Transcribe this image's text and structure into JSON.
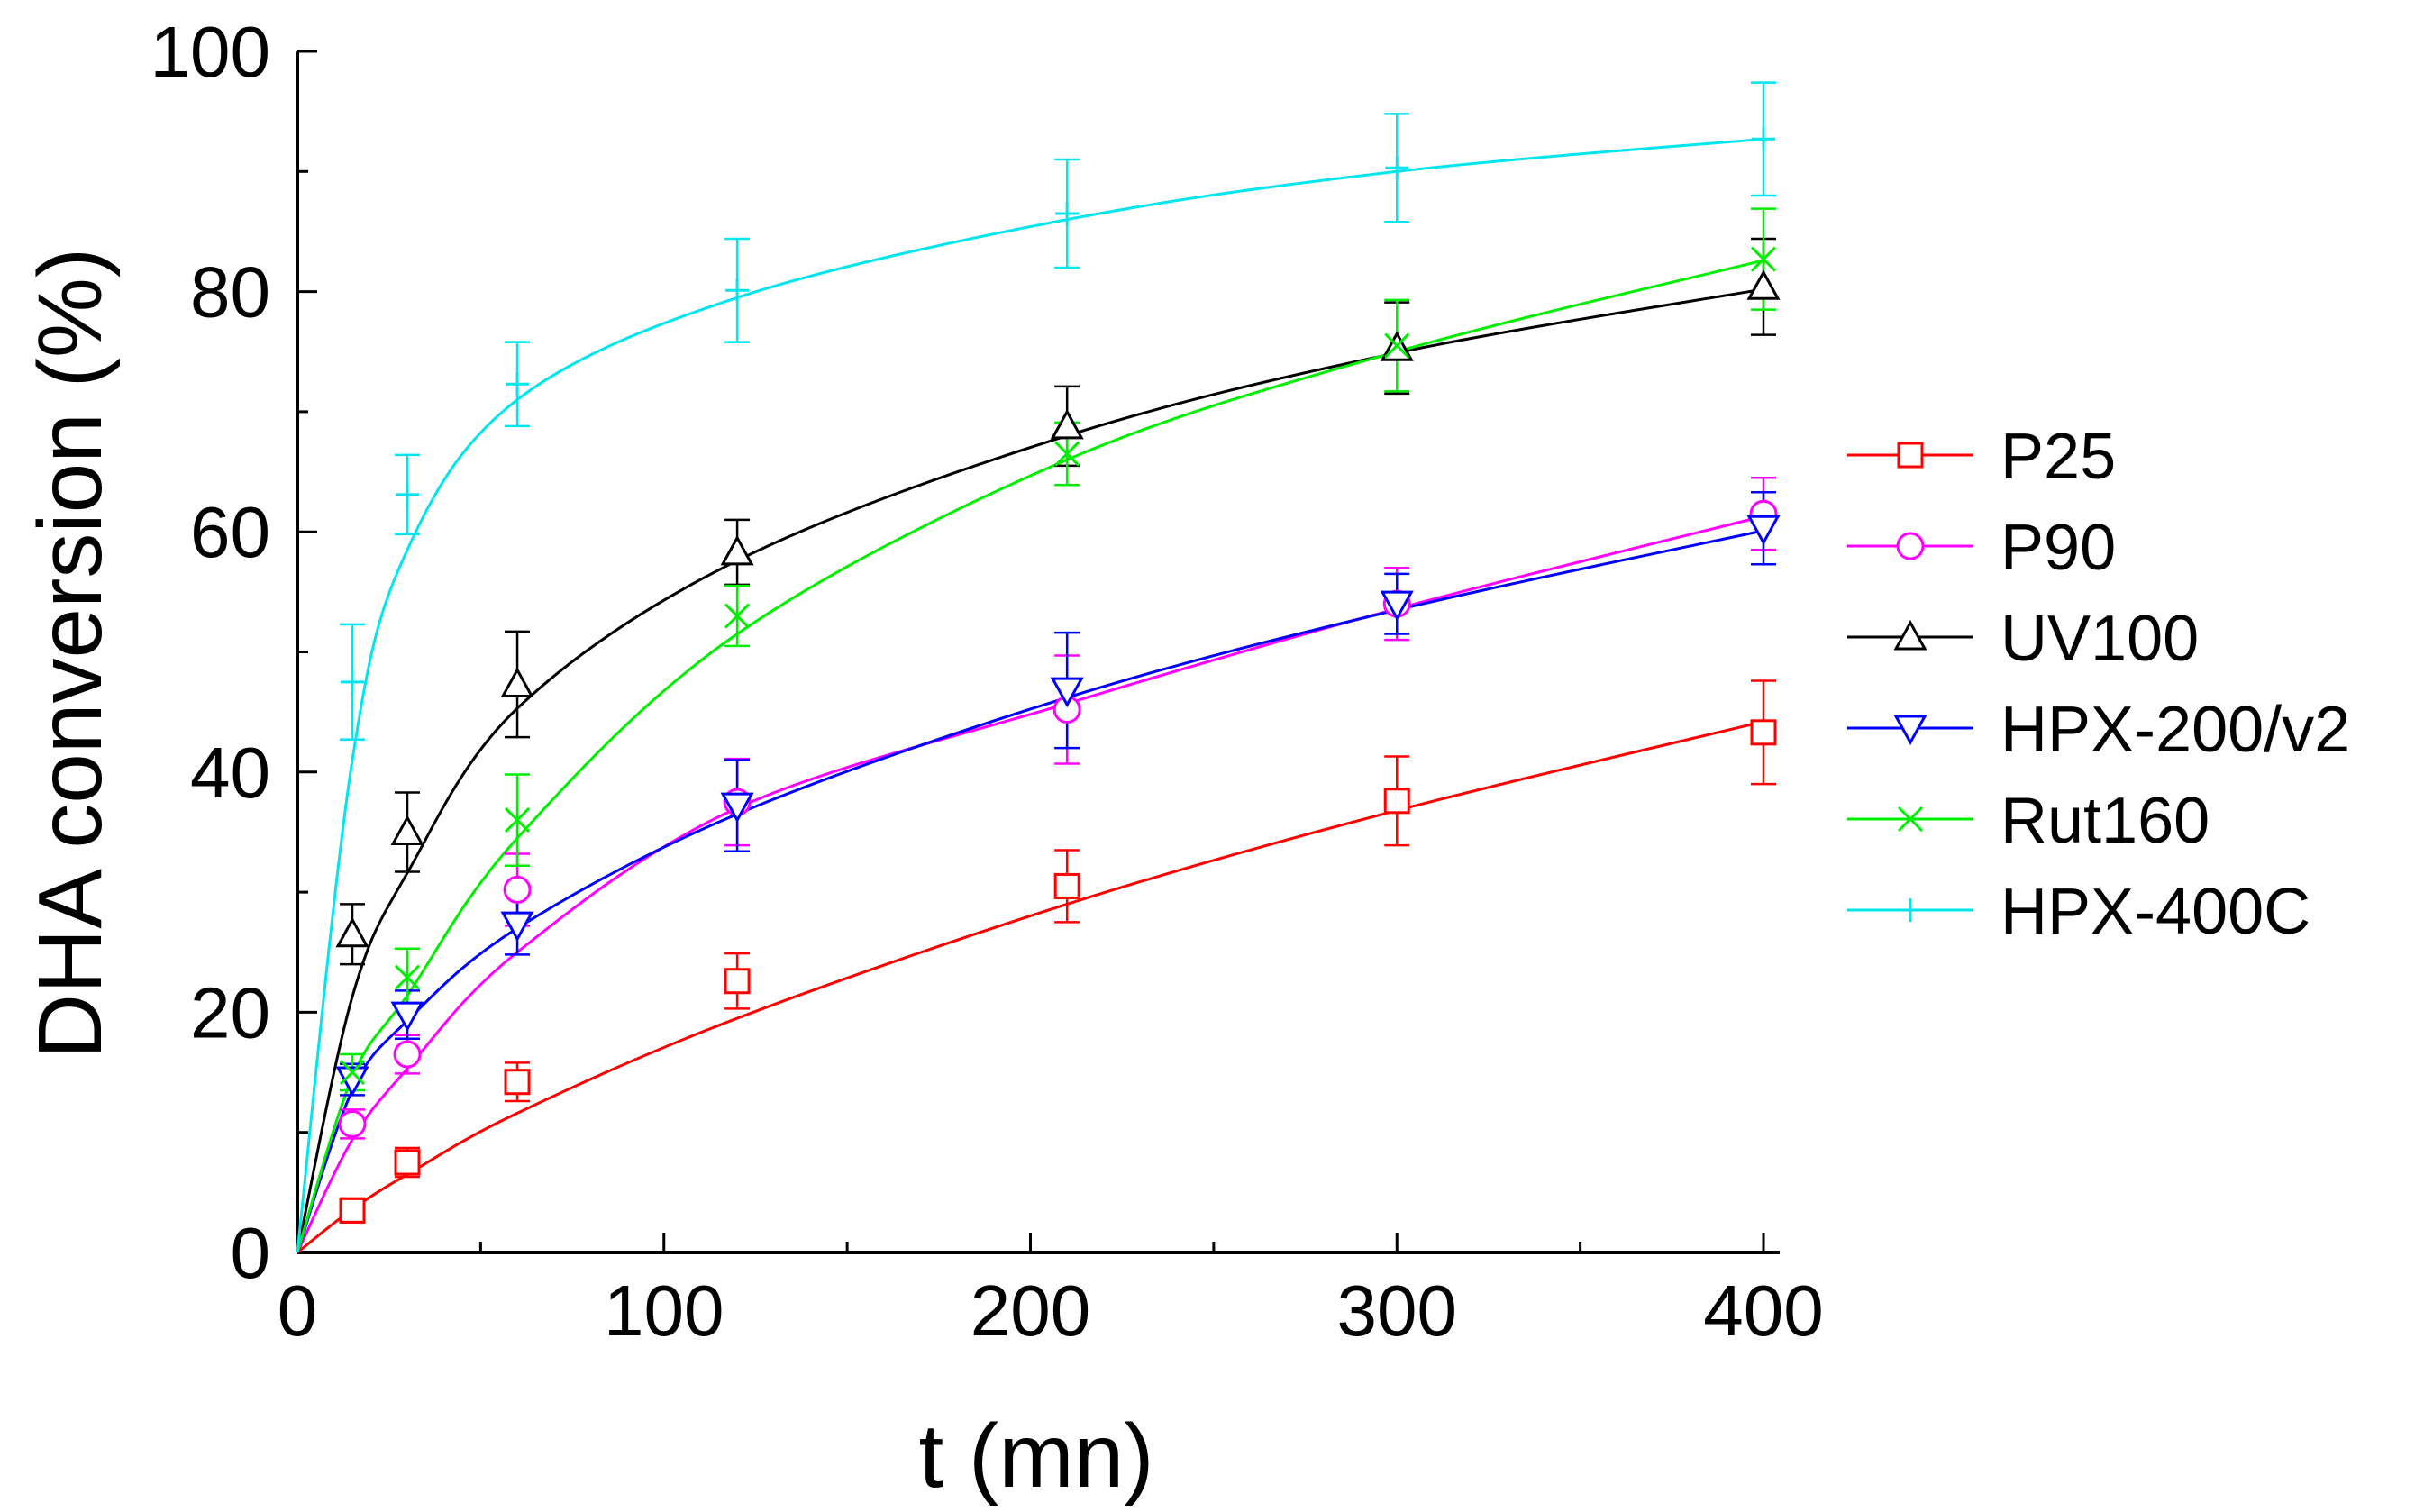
{
  "chart_data": {
    "type": "line",
    "xlabel": "t (mn)",
    "ylabel": "DHA conversion (%)",
    "xlim": [
      0,
      400
    ],
    "ylim": [
      0,
      100
    ],
    "xticks": [
      0,
      100,
      200,
      300,
      400
    ],
    "yticks": [
      0,
      20,
      40,
      60,
      80,
      100
    ],
    "x": [
      0,
      15,
      30,
      60,
      120,
      210,
      300,
      400
    ],
    "legend_position": "right",
    "series": [
      {
        "name": "P25",
        "color": "#ff0000",
        "marker": "square",
        "values": [
          0,
          3.5,
          7.5,
          14.2,
          22.6,
          30.5,
          37.6,
          43.3
        ],
        "errors": [
          0,
          1.0,
          1.2,
          1.6,
          2.3,
          3.0,
          3.7,
          4.3
        ],
        "fit": [
          0,
          3.6,
          6.5,
          11.6,
          19.5,
          29.0,
          36.8,
          44.2
        ]
      },
      {
        "name": "P90",
        "color": "#ff00ff",
        "marker": "circle",
        "values": [
          0,
          10.7,
          16.5,
          30.2,
          37.5,
          45.2,
          54.0,
          61.5
        ],
        "errors": [
          0,
          1.2,
          1.6,
          3.0,
          3.6,
          4.5,
          3.0,
          3.0
        ],
        "fit": [
          0,
          9.4,
          15.3,
          25.0,
          37.0,
          45.7,
          53.6,
          61.3
        ]
      },
      {
        "name": "UV100",
        "color": "#000000",
        "marker": "triangle-up",
        "values": [
          0,
          26.5,
          35.0,
          47.3,
          58.3,
          68.8,
          75.3,
          80.4
        ],
        "errors": [
          0,
          2.5,
          3.3,
          4.4,
          2.7,
          3.3,
          3.8,
          4.0
        ],
        "fit": [
          0,
          21.3,
          31.6,
          45.3,
          57.6,
          68.0,
          74.9,
          80.2
        ]
      },
      {
        "name": "HPX-200/v2",
        "color": "#0000ff",
        "marker": "triangle-down",
        "values": [
          0,
          14.4,
          19.8,
          27.3,
          37.2,
          46.8,
          54.0,
          60.3
        ],
        "errors": [
          0,
          1.3,
          2.0,
          2.5,
          3.8,
          4.8,
          2.5,
          3.0
        ],
        "fit": [
          0,
          13.5,
          19.3,
          27.0,
          36.5,
          46.2,
          53.5,
          60.1
        ]
      },
      {
        "name": "Rut160",
        "color": "#00ee00",
        "marker": "x",
        "values": [
          0,
          15.0,
          22.9,
          36.0,
          53.0,
          66.5,
          75.5,
          82.7
        ],
        "errors": [
          0,
          1.5,
          2.4,
          3.8,
          2.5,
          2.6,
          3.8,
          4.2
        ],
        "fit": [
          0,
          14.6,
          21.4,
          34.5,
          51.5,
          66.0,
          75.0,
          82.6
        ]
      },
      {
        "name": "HPX-400C",
        "color": "#00e5ee",
        "marker": "plus",
        "values": [
          0,
          47.5,
          63.1,
          72.3,
          80.1,
          86.5,
          90.3,
          92.7
        ],
        "errors": [
          0,
          4.8,
          3.3,
          3.5,
          4.3,
          4.5,
          4.5,
          4.7
        ],
        "fit": [
          0,
          41.0,
          58.5,
          71.0,
          79.5,
          86.0,
          90.0,
          92.7
        ]
      }
    ]
  }
}
